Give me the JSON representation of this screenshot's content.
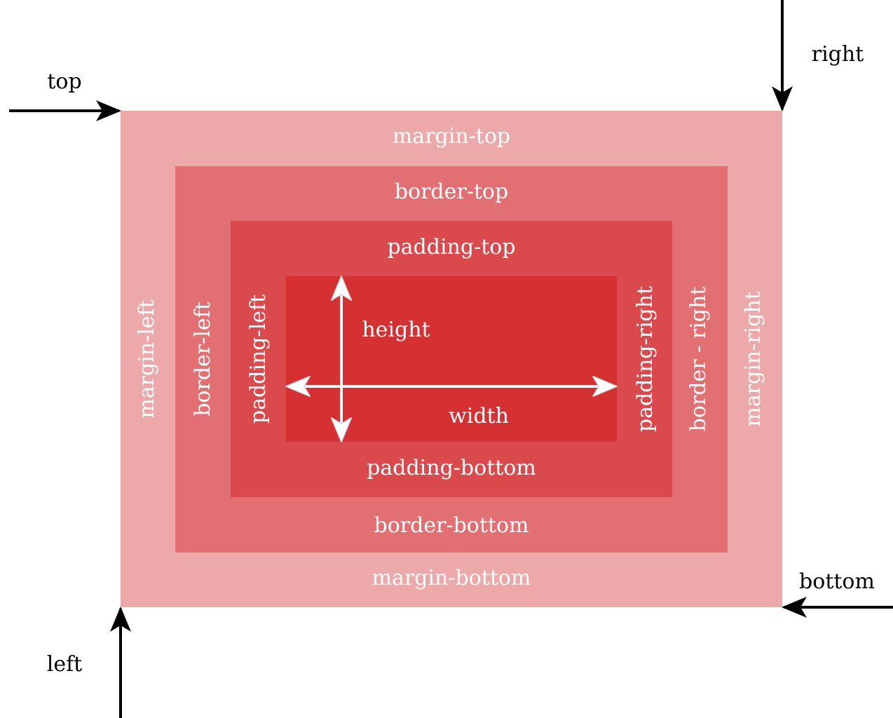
{
  "colors": {
    "margin": "#eda9aa",
    "border": "#e26f71",
    "padding": "#da494b",
    "content": "#d53132",
    "inner_text": "#ffffff",
    "outer_text": "#000000",
    "arrow_outer": "#000000",
    "arrow_inner": "#ffffff"
  },
  "labels": {
    "margin": {
      "top": "margin-top",
      "left": "margin-left",
      "right": "margin-right",
      "bottom": "margin-bottom"
    },
    "border": {
      "top": "border-top",
      "left": "border-left",
      "right": "border - right",
      "bottom": "border-bottom"
    },
    "padding": {
      "top": "padding-top",
      "left": "padding-left",
      "right": "padding-right",
      "bottom": "padding-bottom"
    },
    "content": {
      "height": "height",
      "width": "width"
    },
    "position": {
      "top": "top",
      "right": "right",
      "bottom": "bottom",
      "left": "left"
    }
  },
  "icons": {
    "top_arrow": "arrow-right-icon",
    "right_arrow": "arrow-down-icon",
    "bottom_arrow": "arrow-left-icon",
    "left_arrow": "arrow-up-icon",
    "height_arrow": "double-arrow-vertical-icon",
    "width_arrow": "double-arrow-horizontal-icon"
  }
}
